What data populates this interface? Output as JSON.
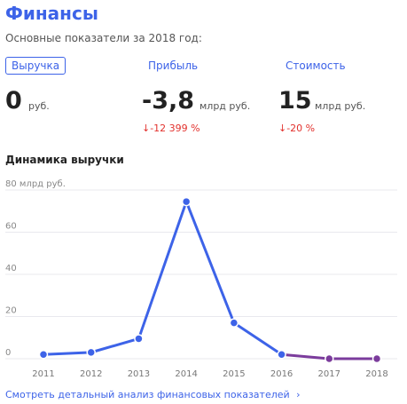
{
  "header": {
    "title": "Финансы",
    "subtitle": "Основные показатели за 2018 год:"
  },
  "tabs": [
    {
      "label": "Выручка",
      "active": true
    },
    {
      "label": "Прибыль",
      "active": false
    },
    {
      "label": "Стоимость",
      "active": false
    }
  ],
  "metrics": [
    {
      "value": "0",
      "unit": "руб.",
      "change": ""
    },
    {
      "value": "-3,8",
      "unit": "млрд руб.",
      "change": "↓-12 399 %"
    },
    {
      "value": "15",
      "unit": "млрд руб.",
      "change": "↓-20 %"
    }
  ],
  "section_title": "Динамика выручки",
  "colors": {
    "accent": "#3d63e8",
    "negative": "#e2312d",
    "line_primary": "#3d63e8",
    "line_secondary": "#7b3c9c"
  },
  "chart_data": {
    "type": "line",
    "ylabel": "80 млрд руб.",
    "ylim": [
      0,
      80
    ],
    "yticks": [
      "0",
      "20",
      "40",
      "60"
    ],
    "x": [
      "2011",
      "2012",
      "2013",
      "2014",
      "2015",
      "2016",
      "2017",
      "2018"
    ],
    "series": [
      {
        "values": [
          2,
          3,
          9.5,
          74.5,
          17,
          2,
          0,
          0
        ]
      }
    ],
    "grid": true
  },
  "footer": {
    "link_label": "Смотреть детальный анализ финансовых показателей",
    "link_icon": "chevron-right-icon",
    "chevron": "›"
  }
}
